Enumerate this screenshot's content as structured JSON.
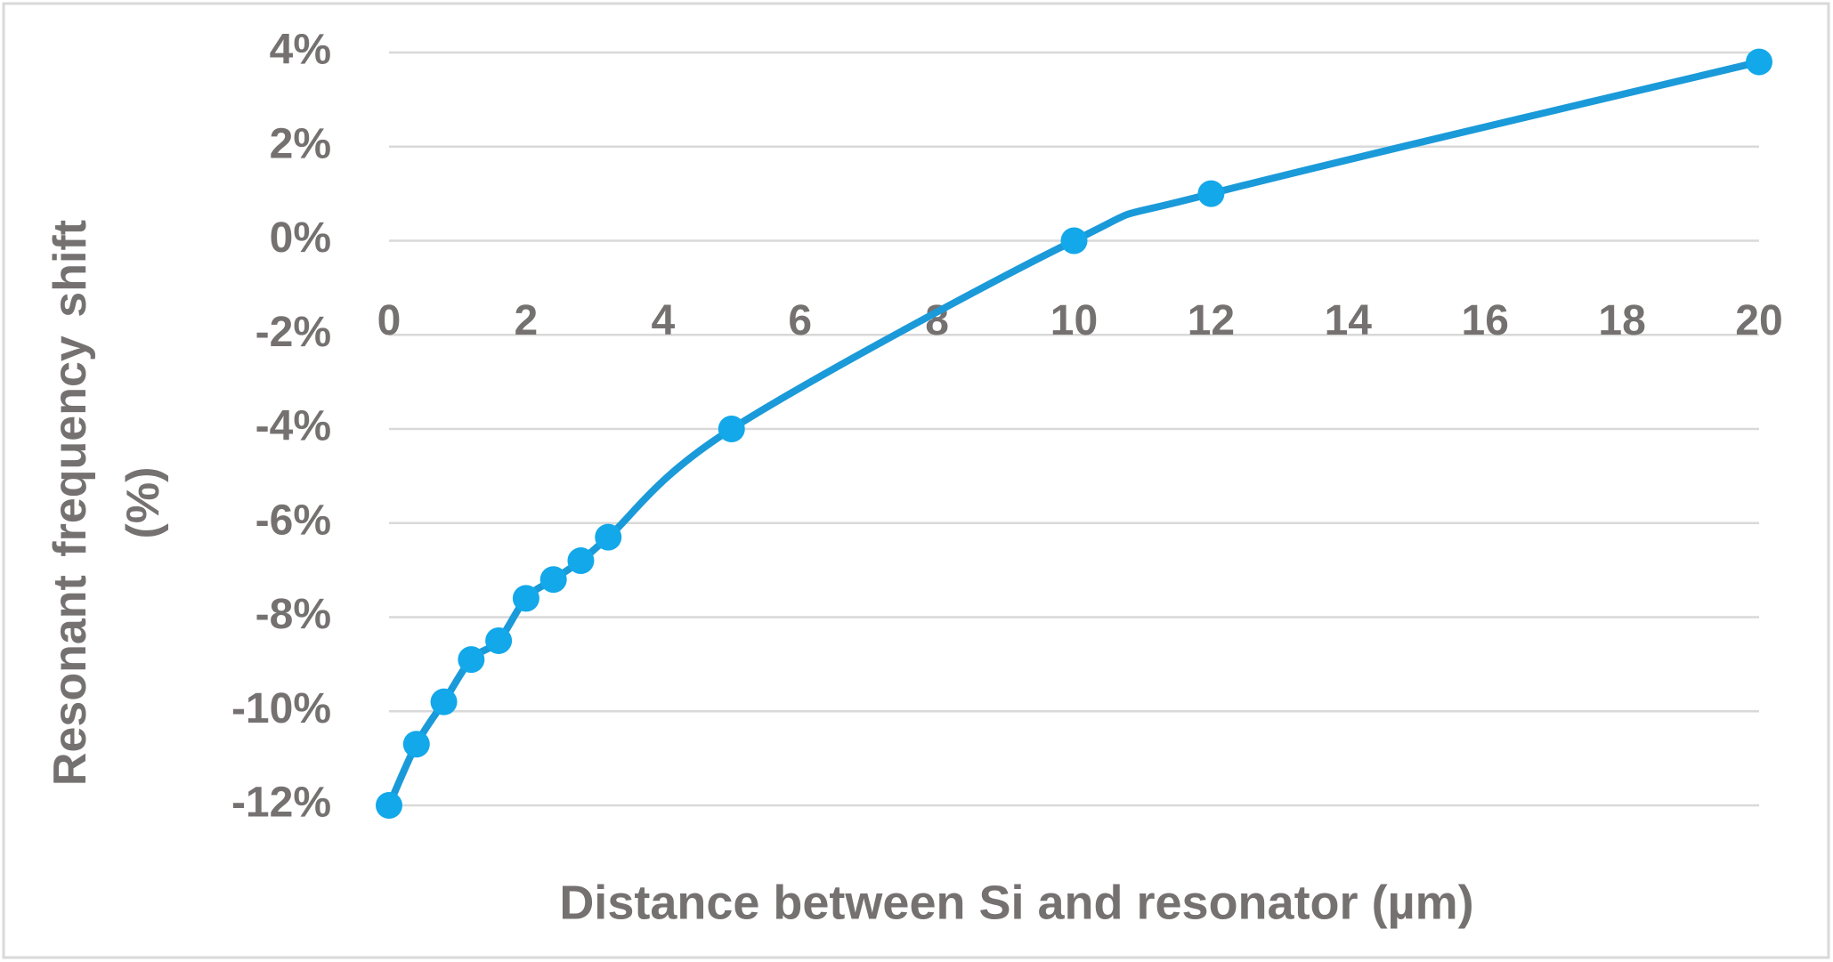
{
  "chart_data": {
    "type": "line",
    "x_label": "Distance between Si  and resonator (µm)",
    "y_label": "Resonant frequency shift (%)",
    "series": [
      {
        "name": "Resonant frequency shift",
        "color": "#1a9ad9",
        "marker_color": "#12a8ea",
        "x": [
          0,
          0.4,
          0.8,
          1.2,
          1.6,
          2,
          2.4,
          2.8,
          3.2,
          5,
          10,
          12,
          20
        ],
        "values": [
          -12,
          -10.7,
          -9.8,
          -8.9,
          -8.5,
          -7.6,
          -7.2,
          -6.8,
          -6.3,
          -4.0,
          0,
          1.0,
          3.8
        ]
      }
    ],
    "xlim": [
      0,
      20
    ],
    "xticks": [
      0,
      2,
      4,
      6,
      8,
      10,
      12,
      14,
      16,
      18,
      20
    ],
    "ylim": [
      -12,
      4
    ],
    "yticks": [
      {
        "value": -12,
        "label": "-12%"
      },
      {
        "value": -10,
        "label": "-10%"
      },
      {
        "value": -8,
        "label": "-8%"
      },
      {
        "value": -6,
        "label": "-6%"
      },
      {
        "value": -4,
        "label": "-4%"
      },
      {
        "value": -2,
        "label": "-2%"
      },
      {
        "value": 0,
        "label": "0%"
      },
      {
        "value": 2,
        "label": "2%"
      },
      {
        "value": 4,
        "label": "4%"
      }
    ],
    "grid": true,
    "smooth": true
  }
}
